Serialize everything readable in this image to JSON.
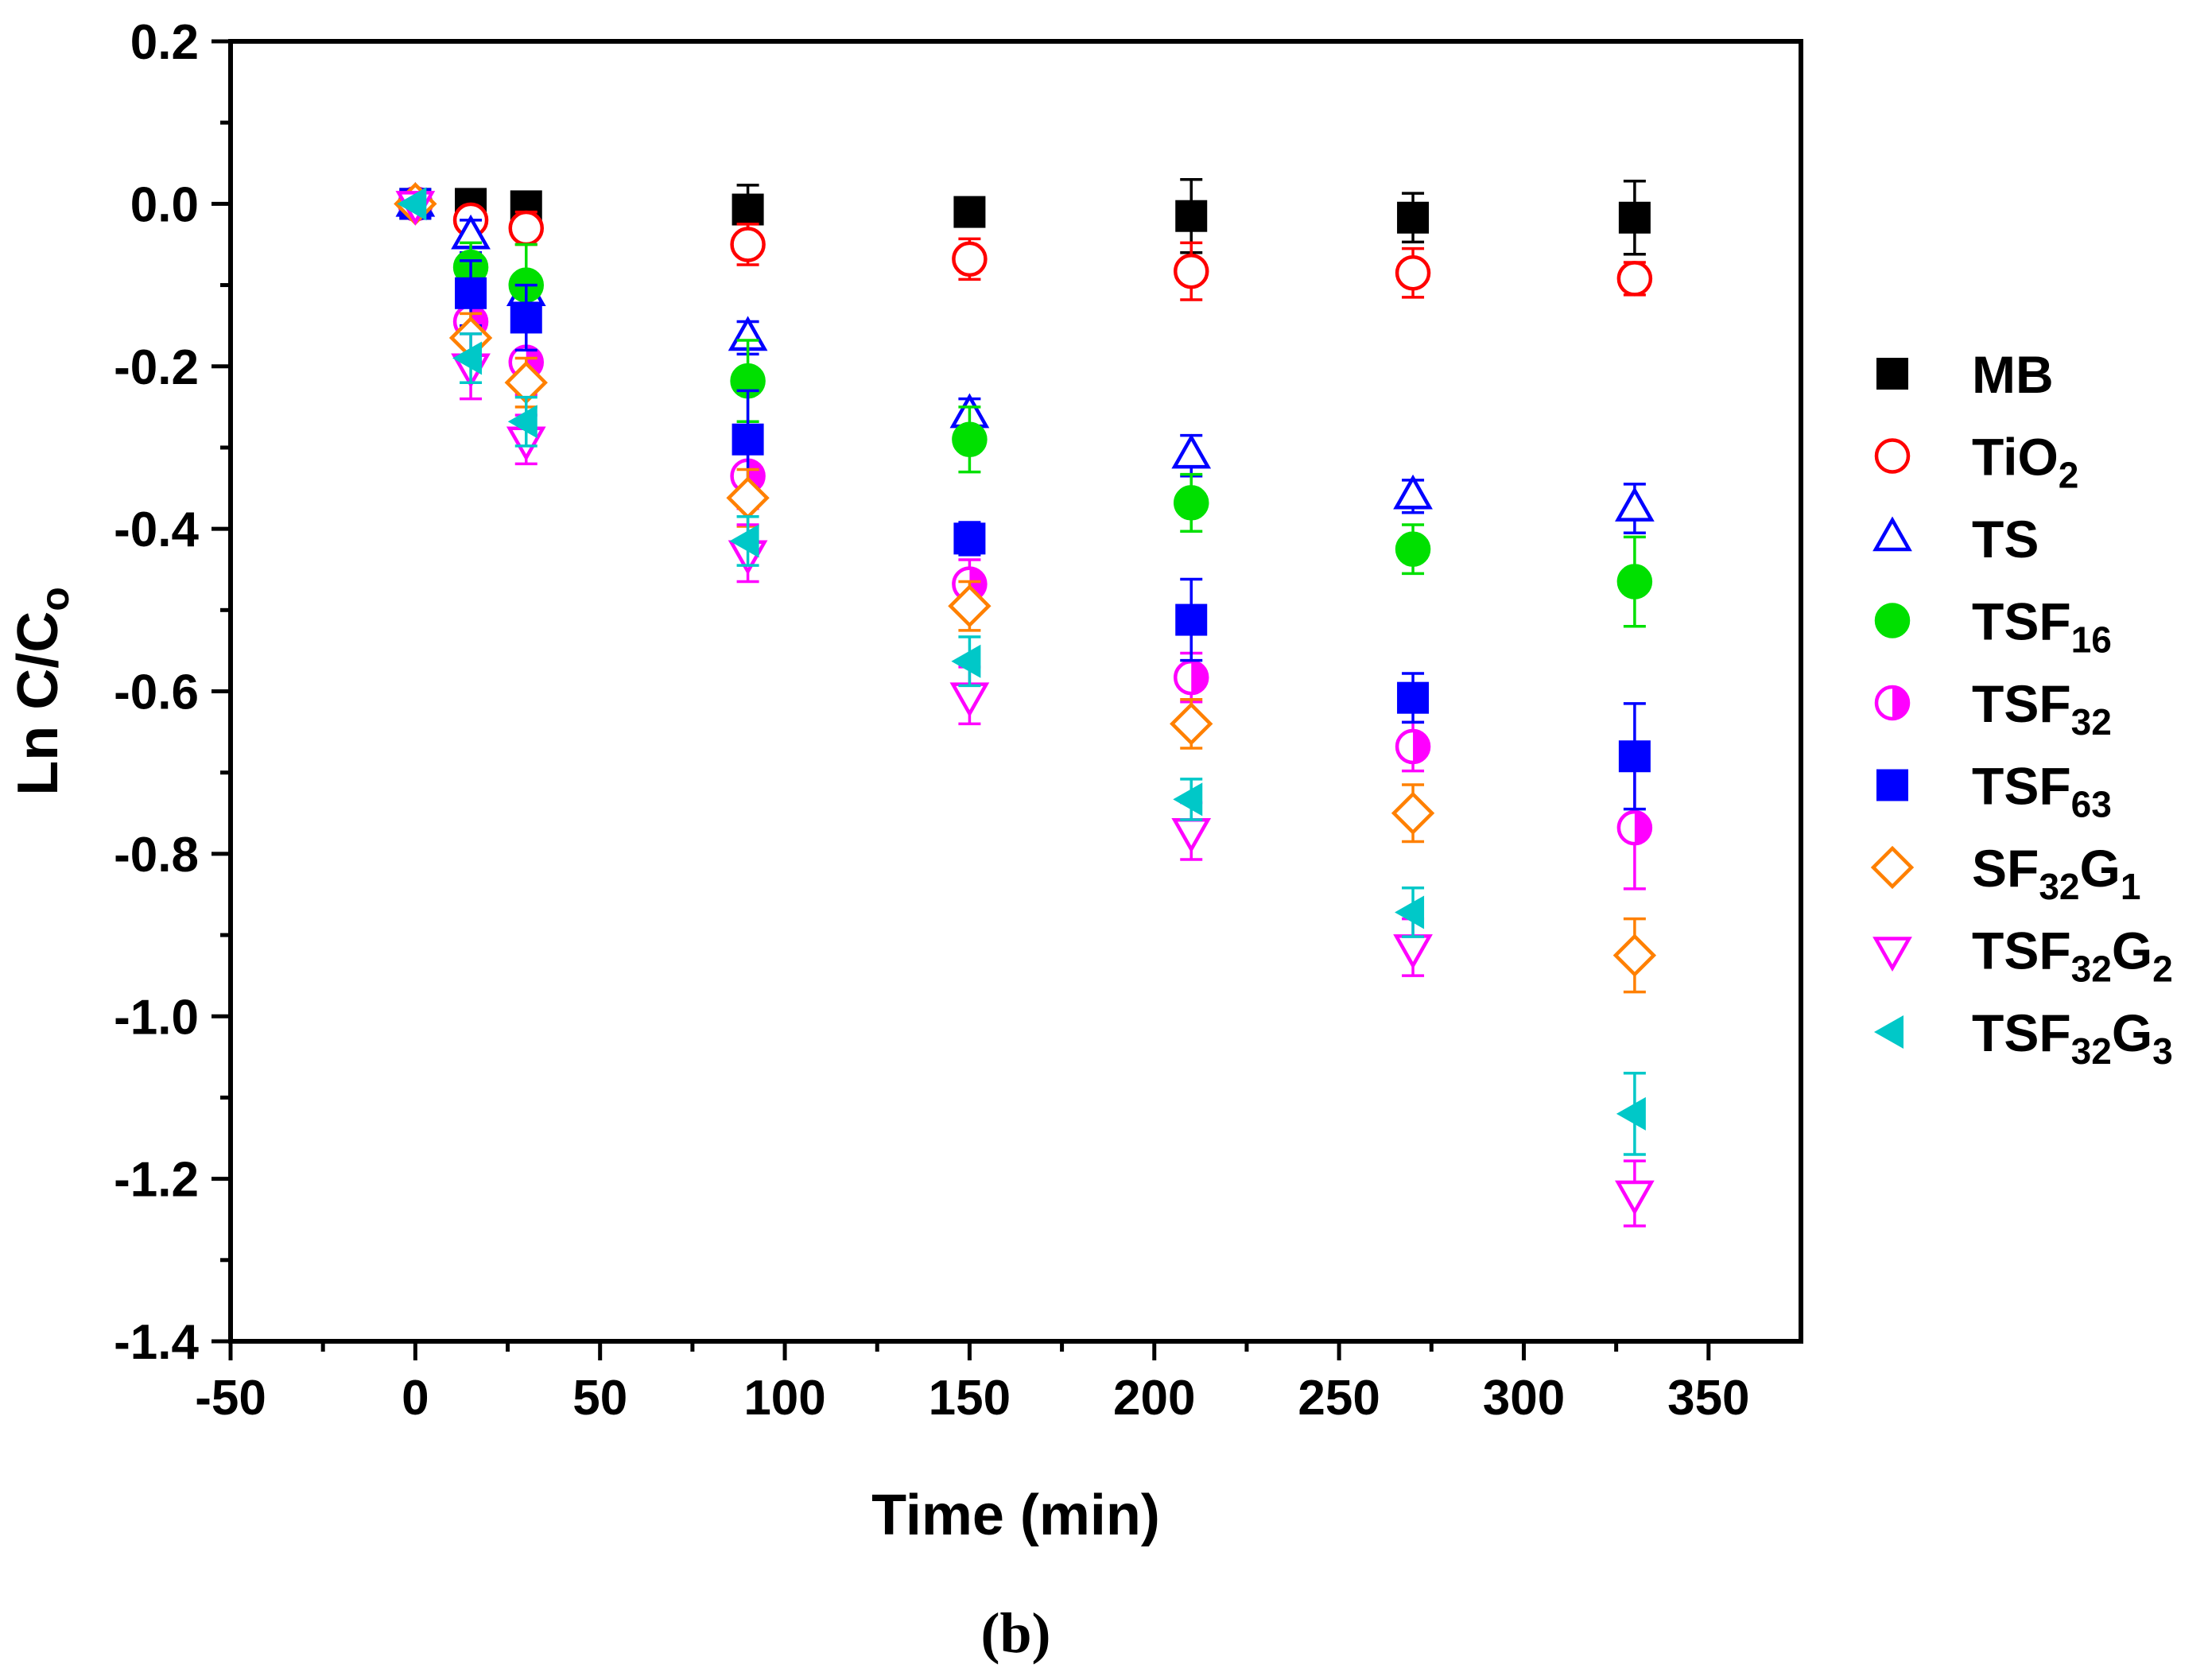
{
  "chart_data": {
    "type": "scatter",
    "title": "",
    "caption": "(b)",
    "xlabel": "Time (min)",
    "ylabel": {
      "main": "Ln C/C",
      "sub": "o"
    },
    "xlim": [
      -50,
      375
    ],
    "ylim": [
      -1.4,
      0.2
    ],
    "xticks": [
      -50,
      0,
      50,
      100,
      150,
      200,
      250,
      300,
      350
    ],
    "xtick_labels": [
      "-50",
      "0",
      "50",
      "100",
      "150",
      "200",
      "250",
      "300",
      "350"
    ],
    "yticks": [
      0.2,
      0.0,
      -0.2,
      -0.4,
      -0.6,
      -0.8,
      -1.0,
      -1.2,
      -1.4
    ],
    "ytick_labels": [
      "0.2",
      "0.0",
      "-0.2",
      "-0.4",
      "-0.6",
      "-0.8",
      "-1.0",
      "-1.2",
      "-1.4"
    ],
    "x": [
      0,
      15,
      30,
      90,
      150,
      210,
      270,
      330
    ],
    "legend_position": "right",
    "series": [
      {
        "name": "MB",
        "label_main": "MB",
        "label_sub": "",
        "label_main2": "",
        "label_sub2": "",
        "marker": "square",
        "filled": true,
        "color": "#000000",
        "values": [
          0.0,
          0.0,
          -0.003,
          -0.007,
          -0.01,
          -0.015,
          -0.017,
          -0.017
        ],
        "errors": [
          0.01,
          0.01,
          0.01,
          0.03,
          0.01,
          0.045,
          0.03,
          0.045
        ]
      },
      {
        "name": "TiO2",
        "label_main": "TiO",
        "label_sub": "2",
        "label_main2": "",
        "label_sub2": "",
        "marker": "circle",
        "filled": false,
        "color": "#ff0000",
        "values": [
          0.0,
          -0.02,
          -0.03,
          -0.05,
          -0.068,
          -0.083,
          -0.085,
          -0.092
        ],
        "errors": [
          0.01,
          0.015,
          0.02,
          0.025,
          0.025,
          0.035,
          0.03,
          0.02
        ]
      },
      {
        "name": "TS",
        "label_main": "TS",
        "label_sub": "",
        "label_main2": "",
        "label_sub2": "",
        "marker": "triangle-up",
        "filled": false,
        "color": "#0000ff",
        "values": [
          0.0,
          -0.04,
          -0.11,
          -0.165,
          -0.26,
          -0.31,
          -0.36,
          -0.375
        ],
        "errors": [
          0.01,
          0.02,
          0.02,
          0.02,
          0.02,
          0.025,
          0.02,
          0.03
        ]
      },
      {
        "name": "TSF16",
        "label_main": "TSF",
        "label_sub": "16",
        "label_main2": "",
        "label_sub2": "",
        "marker": "circle",
        "filled": true,
        "color": "#00e000",
        "values": [
          0.0,
          -0.078,
          -0.1,
          -0.218,
          -0.29,
          -0.368,
          -0.425,
          -0.465
        ],
        "errors": [
          0.01,
          0.03,
          0.05,
          0.05,
          0.04,
          0.035,
          0.03,
          0.055
        ]
      },
      {
        "name": "TSF32",
        "label_main": "TSF",
        "label_sub": "32",
        "label_main2": "",
        "label_sub2": "",
        "marker": "half-circle",
        "filled": true,
        "color": "#ff00ff",
        "values": [
          0.0,
          -0.145,
          -0.195,
          -0.335,
          -0.468,
          -0.583,
          -0.668,
          -0.768
        ],
        "errors": [
          0.01,
          0.03,
          0.04,
          0.04,
          0.03,
          0.03,
          0.03,
          0.075
        ]
      },
      {
        "name": "TSF63",
        "label_main": "TSF",
        "label_sub": "63",
        "label_main2": "",
        "label_sub2": "",
        "marker": "square",
        "filled": true,
        "color": "#0000ff",
        "values": [
          0.0,
          -0.11,
          -0.14,
          -0.29,
          -0.412,
          -0.512,
          -0.608,
          -0.68
        ],
        "errors": [
          0.01,
          0.04,
          0.04,
          0.06,
          0.02,
          0.05,
          0.03,
          0.065
        ]
      },
      {
        "name": "SF32G1",
        "label_main": "SF",
        "label_sub": "32",
        "label_main2": "G",
        "label_sub2": "1",
        "marker": "diamond",
        "filled": false,
        "color": "#ff8000",
        "values": [
          0.0,
          -0.165,
          -0.22,
          -0.362,
          -0.495,
          -0.64,
          -0.75,
          -0.925
        ],
        "errors": [
          0.01,
          0.03,
          0.03,
          0.035,
          0.03,
          0.03,
          0.035,
          0.045
        ]
      },
      {
        "name": "TSF32G2",
        "label_main": "TSF",
        "label_sub": "32",
        "label_main2": "G",
        "label_sub2": "2",
        "marker": "triangle-down",
        "filled": false,
        "color": "#ff00ff",
        "values": [
          0.0,
          -0.2,
          -0.29,
          -0.43,
          -0.605,
          -0.772,
          -0.915,
          -1.218
        ],
        "errors": [
          0.01,
          0.04,
          0.03,
          0.035,
          0.035,
          0.035,
          0.035,
          0.04
        ]
      },
      {
        "name": "TSF32G3",
        "label_main": "TSF",
        "label_sub": "32",
        "label_main2": "G",
        "label_sub2": "3",
        "marker": "triangle-left",
        "filled": true,
        "color": "#00c8c8",
        "values": [
          0.0,
          -0.19,
          -0.268,
          -0.415,
          -0.563,
          -0.733,
          -0.872,
          -1.12
        ],
        "errors": [
          0.01,
          0.03,
          0.03,
          0.03,
          0.03,
          0.025,
          0.03,
          0.05
        ]
      }
    ]
  }
}
